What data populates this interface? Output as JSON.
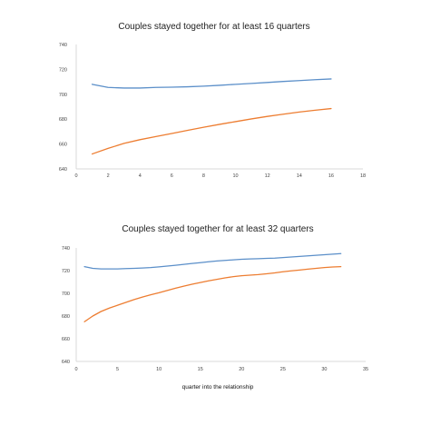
{
  "chart_data": [
    {
      "type": "line",
      "title": "Couples stayed together for at least 16 quarters",
      "xlabel": "",
      "ylabel": "",
      "xlim": [
        0,
        18
      ],
      "ylim": [
        640,
        740
      ],
      "xticks": [
        0,
        2,
        4,
        6,
        8,
        10,
        12,
        14,
        16,
        18
      ],
      "yticks": [
        640,
        660,
        680,
        700,
        720,
        740
      ],
      "grid": false,
      "series": [
        {
          "color": "#5b8fc9",
          "x": [
            1,
            2,
            3,
            4,
            5,
            6,
            7,
            8,
            9,
            10,
            11,
            12,
            13,
            14,
            15,
            16
          ],
          "y": [
            708,
            705.5,
            705,
            705,
            705.5,
            705.7,
            706,
            706.5,
            707.2,
            708,
            708.7,
            709.5,
            710.3,
            711,
            711.7,
            712.3
          ]
        },
        {
          "color": "#ed7d31",
          "x": [
            1,
            2,
            3,
            4,
            5,
            6,
            7,
            8,
            9,
            10,
            11,
            12,
            13,
            14,
            15,
            16
          ],
          "y": [
            652,
            656.5,
            660.5,
            663.5,
            666,
            668.5,
            671,
            673.5,
            675.8,
            678,
            680.2,
            682.2,
            684,
            685.7,
            687.2,
            688.5
          ]
        }
      ]
    },
    {
      "type": "line",
      "title": "Couples stayed together for at least 32 quarters",
      "xlabel": "quarter into the relationship",
      "ylabel": "",
      "xlim": [
        0,
        35
      ],
      "ylim": [
        640,
        740
      ],
      "xticks": [
        0,
        5,
        10,
        15,
        20,
        25,
        30,
        35
      ],
      "yticks": [
        640,
        660,
        680,
        700,
        720,
        740
      ],
      "grid": false,
      "series": [
        {
          "color": "#5b8fc9",
          "x": [
            1,
            2,
            3,
            4,
            5,
            6,
            7,
            8,
            9,
            10,
            11,
            12,
            13,
            14,
            15,
            16,
            17,
            18,
            19,
            20,
            21,
            22,
            23,
            24,
            25,
            26,
            27,
            28,
            29,
            30,
            31,
            32
          ],
          "y": [
            723.5,
            722,
            721.5,
            721.5,
            721.5,
            721.8,
            722,
            722.3,
            722.7,
            723.3,
            724,
            724.7,
            725.5,
            726.3,
            727,
            727.8,
            728.5,
            729,
            729.5,
            730,
            730.3,
            730.5,
            730.8,
            731,
            731.5,
            732,
            732.5,
            733,
            733.5,
            734,
            734.5,
            735
          ]
        },
        {
          "color": "#ed7d31",
          "x": [
            1,
            2,
            3,
            4,
            5,
            6,
            7,
            8,
            9,
            10,
            11,
            12,
            13,
            14,
            15,
            16,
            17,
            18,
            19,
            20,
            21,
            22,
            23,
            24,
            25,
            26,
            27,
            28,
            29,
            30,
            31,
            32
          ],
          "y": [
            675,
            680,
            684,
            687,
            689.5,
            692,
            694.5,
            696.7,
            698.7,
            700.5,
            702.5,
            704.5,
            706.3,
            708,
            709.5,
            711,
            712.3,
            713.6,
            714.7,
            715.5,
            716,
            716.5,
            717.2,
            718,
            719,
            719.8,
            720.5,
            721.3,
            722,
            722.7,
            723.2,
            723.5
          ]
        }
      ]
    }
  ]
}
